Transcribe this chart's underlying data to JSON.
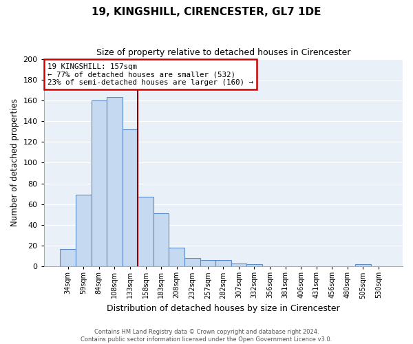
{
  "title": "19, KINGSHILL, CIRENCESTER, GL7 1DE",
  "subtitle": "Size of property relative to detached houses in Cirencester",
  "xlabel": "Distribution of detached houses by size in Cirencester",
  "ylabel": "Number of detached properties",
  "bin_labels": [
    "34sqm",
    "59sqm",
    "84sqm",
    "108sqm",
    "133sqm",
    "158sqm",
    "183sqm",
    "208sqm",
    "232sqm",
    "257sqm",
    "282sqm",
    "307sqm",
    "332sqm",
    "356sqm",
    "381sqm",
    "406sqm",
    "431sqm",
    "456sqm",
    "480sqm",
    "505sqm",
    "530sqm"
  ],
  "bar_values": [
    17,
    69,
    160,
    163,
    132,
    67,
    51,
    18,
    8,
    6,
    6,
    3,
    2,
    0,
    0,
    0,
    0,
    0,
    0,
    2,
    0
  ],
  "bar_color": "#c5d9f0",
  "bar_edge_color": "#5b8cc8",
  "marker_label_line1": "19 KINGSHILL: 157sqm",
  "marker_label_line2": "← 77% of detached houses are smaller (532)",
  "marker_label_line3": "23% of semi-detached houses are larger (160) →",
  "marker_color": "#8b0000",
  "ylim": [
    0,
    200
  ],
  "yticks": [
    0,
    20,
    40,
    60,
    80,
    100,
    120,
    140,
    160,
    180,
    200
  ],
  "footer_line1": "Contains HM Land Registry data © Crown copyright and database right 2024.",
  "footer_line2": "Contains public sector information licensed under the Open Government Licence v3.0.",
  "background_color": "#ffffff",
  "plot_bg_color": "#eaf0f8"
}
